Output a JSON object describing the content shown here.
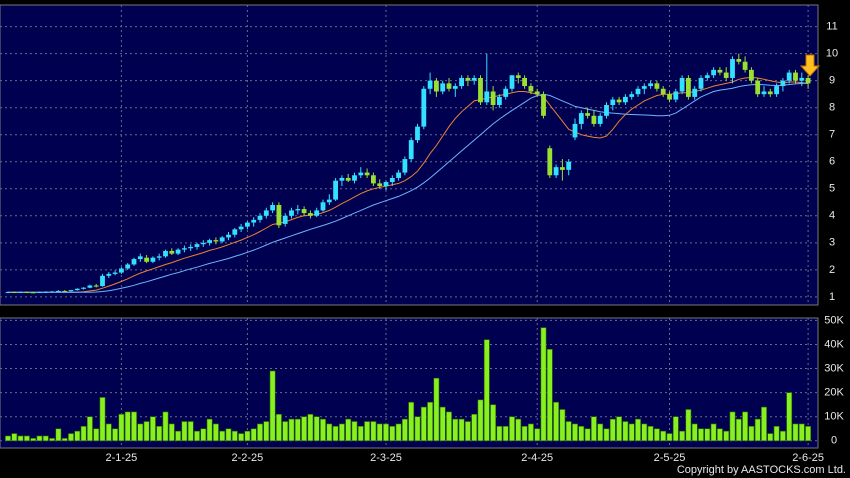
{
  "chart_data": {
    "type": "candlestick",
    "categories": [
      null,
      null,
      null,
      null,
      null,
      null,
      null,
      null,
      null,
      null,
      null,
      null,
      null,
      null,
      null,
      null,
      null,
      null,
      "2-1-25",
      null,
      null,
      null,
      null,
      null,
      null,
      null,
      null,
      null,
      null,
      null,
      null,
      null,
      null,
      null,
      null,
      null,
      null,
      null,
      "2-2-25",
      null,
      null,
      null,
      null,
      null,
      null,
      null,
      null,
      null,
      null,
      null,
      null,
      null,
      null,
      null,
      null,
      null,
      null,
      null,
      null,
      null,
      "2-3-25",
      null,
      null,
      null,
      null,
      null,
      null,
      null,
      null,
      null,
      null,
      null,
      null,
      null,
      null,
      null,
      null,
      null,
      null,
      null,
      null,
      null,
      null,
      null,
      "2-4-25",
      null,
      null,
      null,
      null,
      null,
      null,
      null,
      null,
      null,
      null,
      null,
      null,
      null,
      null,
      null,
      null,
      null,
      null,
      null,
      null,
      "2-5-25",
      null,
      null,
      null,
      null,
      null,
      null,
      null,
      null,
      null,
      null,
      null,
      null,
      null,
      null,
      null,
      null,
      null,
      null,
      null,
      null,
      null,
      "2-6-25",
      null
    ],
    "candles": [
      [
        1.16,
        1.2,
        1.14,
        1.18
      ],
      [
        1.18,
        1.2,
        1.15,
        1.17
      ],
      [
        1.17,
        1.2,
        1.15,
        1.18
      ],
      [
        1.18,
        1.2,
        1.16,
        1.17
      ],
      [
        1.17,
        1.19,
        1.14,
        1.16
      ],
      [
        1.16,
        1.2,
        1.15,
        1.18
      ],
      [
        1.18,
        1.21,
        1.16,
        1.19
      ],
      [
        1.19,
        1.22,
        1.17,
        1.2
      ],
      [
        1.2,
        1.25,
        1.18,
        1.22
      ],
      [
        1.22,
        1.25,
        1.19,
        1.21
      ],
      [
        1.21,
        1.26,
        1.2,
        1.25
      ],
      [
        1.25,
        1.32,
        1.23,
        1.3
      ],
      [
        1.3,
        1.36,
        1.27,
        1.34
      ],
      [
        1.34,
        1.45,
        1.32,
        1.42
      ],
      [
        1.42,
        1.48,
        1.35,
        1.38
      ],
      [
        1.4,
        1.85,
        1.38,
        1.78
      ],
      [
        1.78,
        1.92,
        1.7,
        1.85
      ],
      [
        1.85,
        1.98,
        1.8,
        1.9
      ],
      [
        1.9,
        2.1,
        1.85,
        2.05
      ],
      [
        2.05,
        2.25,
        2.0,
        2.2
      ],
      [
        2.2,
        2.45,
        2.15,
        2.4
      ],
      [
        2.4,
        2.6,
        2.3,
        2.5
      ],
      [
        2.45,
        2.55,
        2.25,
        2.3
      ],
      [
        2.3,
        2.5,
        2.25,
        2.45
      ],
      [
        2.45,
        2.6,
        2.35,
        2.5
      ],
      [
        2.5,
        2.75,
        2.45,
        2.7
      ],
      [
        2.7,
        2.8,
        2.55,
        2.6
      ],
      [
        2.6,
        2.8,
        2.55,
        2.75
      ],
      [
        2.75,
        2.9,
        2.65,
        2.8
      ],
      [
        2.8,
        2.95,
        2.7,
        2.85
      ],
      [
        2.85,
        3.0,
        2.75,
        2.95
      ],
      [
        2.95,
        3.1,
        2.85,
        3.0
      ],
      [
        3.0,
        3.15,
        2.9,
        3.1
      ],
      [
        3.1,
        3.2,
        2.95,
        3.05
      ],
      [
        3.05,
        3.25,
        3.0,
        3.2
      ],
      [
        3.2,
        3.4,
        3.1,
        3.3
      ],
      [
        3.3,
        3.55,
        3.2,
        3.5
      ],
      [
        3.5,
        3.7,
        3.4,
        3.6
      ],
      [
        3.6,
        3.8,
        3.5,
        3.75
      ],
      [
        3.75,
        3.95,
        3.6,
        3.85
      ],
      [
        3.85,
        4.1,
        3.75,
        4.0
      ],
      [
        4.0,
        4.3,
        3.9,
        4.2
      ],
      [
        4.2,
        4.5,
        4.1,
        4.4
      ],
      [
        4.4,
        4.5,
        3.55,
        3.65
      ],
      [
        3.7,
        4.1,
        3.6,
        4.0
      ],
      [
        4.0,
        4.3,
        3.9,
        4.2
      ],
      [
        4.2,
        4.4,
        4.05,
        4.25
      ],
      [
        4.25,
        4.35,
        4.0,
        4.1
      ],
      [
        4.1,
        4.2,
        3.9,
        4.0
      ],
      [
        4.0,
        4.3,
        3.95,
        4.2
      ],
      [
        4.2,
        4.6,
        4.15,
        4.5
      ],
      [
        4.5,
        4.8,
        4.4,
        4.6
      ],
      [
        4.6,
        5.4,
        4.55,
        5.3
      ],
      [
        5.3,
        5.5,
        5.1,
        5.4
      ],
      [
        5.4,
        5.55,
        5.25,
        5.3
      ],
      [
        5.3,
        5.6,
        5.2,
        5.5
      ],
      [
        5.5,
        5.8,
        5.4,
        5.6
      ],
      [
        5.6,
        5.75,
        5.4,
        5.5
      ],
      [
        5.5,
        5.6,
        5.1,
        5.2
      ],
      [
        5.2,
        5.35,
        5.0,
        5.1
      ],
      [
        5.1,
        5.3,
        4.95,
        5.25
      ],
      [
        5.25,
        5.5,
        5.1,
        5.4
      ],
      [
        5.4,
        5.7,
        5.3,
        5.6
      ],
      [
        5.6,
        6.2,
        5.5,
        6.1
      ],
      [
        6.1,
        6.9,
        6.0,
        6.8
      ],
      [
        6.8,
        7.4,
        6.7,
        7.3
      ],
      [
        7.3,
        8.8,
        7.2,
        8.7
      ],
      [
        8.7,
        9.3,
        8.5,
        9.0
      ],
      [
        9.0,
        9.1,
        8.4,
        8.6
      ],
      [
        8.6,
        9.0,
        8.5,
        8.9
      ],
      [
        8.9,
        9.1,
        8.6,
        8.7
      ],
      [
        8.7,
        8.9,
        8.4,
        8.8
      ],
      [
        8.8,
        9.2,
        8.7,
        9.1
      ],
      [
        9.1,
        9.2,
        8.8,
        9.0
      ],
      [
        9.0,
        9.2,
        8.85,
        9.1
      ],
      [
        9.1,
        9.2,
        8.1,
        8.2
      ],
      [
        8.2,
        10.0,
        8.1,
        8.6
      ],
      [
        8.6,
        8.8,
        7.9,
        8.1
      ],
      [
        8.1,
        8.5,
        8.0,
        8.4
      ],
      [
        8.4,
        8.8,
        8.3,
        8.7
      ],
      [
        8.7,
        9.2,
        8.6,
        9.2
      ],
      [
        9.2,
        9.3,
        8.9,
        9.1
      ],
      [
        9.1,
        9.2,
        8.7,
        8.8
      ],
      [
        8.8,
        8.9,
        8.5,
        8.6
      ],
      [
        8.6,
        8.7,
        8.4,
        8.5
      ],
      [
        8.5,
        8.6,
        7.6,
        7.7
      ],
      [
        6.5,
        6.6,
        5.4,
        5.5
      ],
      [
        5.5,
        5.9,
        5.4,
        5.8
      ],
      [
        5.8,
        6.1,
        5.3,
        5.7
      ],
      [
        5.7,
        6.1,
        5.5,
        6.0
      ],
      [
        6.9,
        7.6,
        6.8,
        7.4
      ],
      [
        7.4,
        7.9,
        7.2,
        7.8
      ],
      [
        7.8,
        8.0,
        7.6,
        7.7
      ],
      [
        7.7,
        7.9,
        7.3,
        7.4
      ],
      [
        7.4,
        7.8,
        7.3,
        7.7
      ],
      [
        7.7,
        8.2,
        7.6,
        8.1
      ],
      [
        8.1,
        8.4,
        7.9,
        8.3
      ],
      [
        8.3,
        8.4,
        8.1,
        8.2
      ],
      [
        8.2,
        8.5,
        8.1,
        8.4
      ],
      [
        8.4,
        8.6,
        8.3,
        8.5
      ],
      [
        8.5,
        8.8,
        8.4,
        8.7
      ],
      [
        8.7,
        8.9,
        8.5,
        8.8
      ],
      [
        8.8,
        9.0,
        8.7,
        8.9
      ],
      [
        8.9,
        9.0,
        8.6,
        8.7
      ],
      [
        8.7,
        8.8,
        8.4,
        8.5
      ],
      [
        8.5,
        8.6,
        8.2,
        8.3
      ],
      [
        8.3,
        8.7,
        8.2,
        8.6
      ],
      [
        8.6,
        9.2,
        8.5,
        9.1
      ],
      [
        9.1,
        9.2,
        8.3,
        8.4
      ],
      [
        8.4,
        8.8,
        8.3,
        8.7
      ],
      [
        8.7,
        9.2,
        8.6,
        9.1
      ],
      [
        9.1,
        9.3,
        9.0,
        9.2
      ],
      [
        9.2,
        9.5,
        9.1,
        9.4
      ],
      [
        9.4,
        9.5,
        9.2,
        9.3
      ],
      [
        9.3,
        9.5,
        9.0,
        9.1
      ],
      [
        9.1,
        9.9,
        8.9,
        9.8
      ],
      [
        9.8,
        10.0,
        9.6,
        9.7
      ],
      [
        9.7,
        9.9,
        9.3,
        9.4
      ],
      [
        9.4,
        9.5,
        8.9,
        9.0
      ],
      [
        9.0,
        9.1,
        8.4,
        8.5
      ],
      [
        8.5,
        8.8,
        8.4,
        8.6
      ],
      [
        8.6,
        8.7,
        8.4,
        8.5
      ],
      [
        8.5,
        8.9,
        8.4,
        8.8
      ],
      [
        8.8,
        9.1,
        8.6,
        9.0
      ],
      [
        9.0,
        9.4,
        8.9,
        9.3
      ],
      [
        9.3,
        9.4,
        8.9,
        9.0
      ],
      [
        9.0,
        9.3,
        8.8,
        9.1
      ],
      [
        9.1,
        9.2,
        8.7,
        8.9
      ]
    ],
    "up_color": "#33e0ff",
    "down_color": "#99e033",
    "ylim": [
      0.7,
      11.8
    ],
    "yticks": [
      1,
      2,
      3,
      4,
      5,
      6,
      7,
      8,
      9,
      10,
      11
    ],
    "grid": true,
    "lines": [
      {
        "color": "#f08030",
        "values": [
          1.17,
          1.17,
          1.17,
          1.17,
          1.17,
          1.17,
          1.17,
          1.17,
          1.17,
          1.17,
          1.17,
          1.17,
          1.19,
          1.22,
          1.25,
          1.32,
          1.4,
          1.48,
          1.57,
          1.67,
          1.78,
          1.88,
          1.96,
          2.04,
          2.12,
          2.2,
          2.27,
          2.35,
          2.43,
          2.5,
          2.57,
          2.64,
          2.72,
          2.78,
          2.85,
          2.93,
          3.02,
          3.1,
          3.2,
          3.3,
          3.42,
          3.55,
          3.68,
          3.72,
          3.78,
          3.86,
          3.94,
          4.0,
          4.03,
          4.05,
          4.12,
          4.2,
          4.32,
          4.45,
          4.57,
          4.7,
          4.82,
          4.92,
          5.0,
          5.05,
          5.1,
          5.15,
          5.2,
          5.3,
          5.45,
          5.65,
          5.95,
          6.3,
          6.6,
          6.95,
          7.3,
          7.6,
          7.85,
          8.05,
          8.25,
          8.3,
          8.35,
          8.4,
          8.45,
          8.5,
          8.55,
          8.6,
          8.6,
          8.55,
          8.5,
          8.4,
          8.1,
          7.8,
          7.5,
          7.2,
          7.1,
          7.0,
          6.95,
          6.9,
          6.88,
          6.95,
          7.2,
          7.5,
          7.75,
          7.95,
          8.1,
          8.25,
          8.35,
          8.45,
          8.5,
          8.5,
          8.52,
          8.55,
          8.55,
          8.6,
          8.65,
          8.72,
          8.8,
          8.85,
          8.9,
          8.95,
          9.05,
          9.1,
          9.12,
          9.1,
          9.05,
          9.0,
          8.95,
          8.92,
          8.95,
          8.95,
          8.93,
          8.9
        ]
      },
      {
        "color": "#6fb4ff",
        "values": [
          1.17,
          1.17,
          1.17,
          1.17,
          1.17,
          1.17,
          1.17,
          1.17,
          1.17,
          1.17,
          1.17,
          1.17,
          1.17,
          1.17,
          1.18,
          1.2,
          1.23,
          1.27,
          1.32,
          1.37,
          1.43,
          1.5,
          1.56,
          1.63,
          1.7,
          1.77,
          1.84,
          1.9,
          1.97,
          2.04,
          2.1,
          2.17,
          2.24,
          2.3,
          2.36,
          2.42,
          2.5,
          2.57,
          2.65,
          2.73,
          2.82,
          2.92,
          3.02,
          3.1,
          3.18,
          3.26,
          3.34,
          3.42,
          3.5,
          3.57,
          3.64,
          3.72,
          3.8,
          3.9,
          4.0,
          4.1,
          4.2,
          4.3,
          4.4,
          4.48,
          4.56,
          4.64,
          4.72,
          4.82,
          4.93,
          5.06,
          5.22,
          5.4,
          5.6,
          5.8,
          6.0,
          6.2,
          6.4,
          6.6,
          6.8,
          7.0,
          7.2,
          7.4,
          7.58,
          7.74,
          7.9,
          8.05,
          8.2,
          8.35,
          8.45,
          8.5,
          8.45,
          8.35,
          8.25,
          8.15,
          8.05,
          8.0,
          7.95,
          7.9,
          7.85,
          7.82,
          7.8,
          7.78,
          7.76,
          7.75,
          7.74,
          7.73,
          7.72,
          7.7,
          7.7,
          7.72,
          7.8,
          7.95,
          8.1,
          8.25,
          8.4,
          8.5,
          8.6,
          8.65,
          8.68,
          8.72,
          8.78,
          8.82,
          8.85,
          8.86,
          8.85,
          8.83,
          8.82,
          8.83,
          8.86,
          8.88,
          8.9,
          8.9
        ]
      }
    ],
    "volume": {
      "color": "#88f020",
      "values": [
        2000,
        3000,
        2000,
        2000,
        1000,
        2000,
        2000,
        1000,
        5000,
        1000,
        3000,
        4000,
        6000,
        10000,
        5000,
        18000,
        7000,
        5000,
        11000,
        12000,
        12000,
        7000,
        8000,
        10000,
        6000,
        12000,
        7000,
        4000,
        8000,
        8000,
        4000,
        5000,
        9000,
        7000,
        4000,
        5000,
        4000,
        3000,
        4000,
        5000,
        7000,
        8000,
        29000,
        11000,
        8000,
        9000,
        9000,
        10000,
        11000,
        10000,
        9000,
        7000,
        6000,
        7000,
        9000,
        8000,
        6000,
        8000,
        8000,
        7000,
        7000,
        6000,
        7000,
        9000,
        16000,
        10000,
        14000,
        16000,
        26000,
        14000,
        12000,
        9000,
        9000,
        8000,
        11000,
        17000,
        42000,
        15000,
        6000,
        6000,
        10000,
        9000,
        6000,
        7000,
        5000,
        47000,
        38000,
        16000,
        13000,
        8000,
        7000,
        6000,
        5000,
        10000,
        7000,
        5000,
        9000,
        10000,
        8000,
        7000,
        9000,
        7000,
        6000,
        5000,
        4000,
        3000,
        10000,
        4000,
        13000,
        7000,
        5000,
        5000,
        7000,
        5000,
        4000,
        12000,
        9000,
        12000,
        6000,
        9000,
        14000,
        3000,
        6000,
        4000,
        20000,
        7000,
        7000,
        6000
      ],
      "ylim": [
        -3000,
        51000
      ],
      "yticks": [
        0,
        {
          "value": 10000,
          "label": "10K"
        },
        {
          "value": 20000,
          "label": "20K"
        },
        {
          "value": 30000,
          "label": "30K"
        },
        {
          "value": 40000,
          "label": "40K"
        },
        {
          "value": 50000,
          "label": "50K"
        }
      ]
    }
  },
  "copyright": "Copyright by AASTOCKS.com Ltd."
}
